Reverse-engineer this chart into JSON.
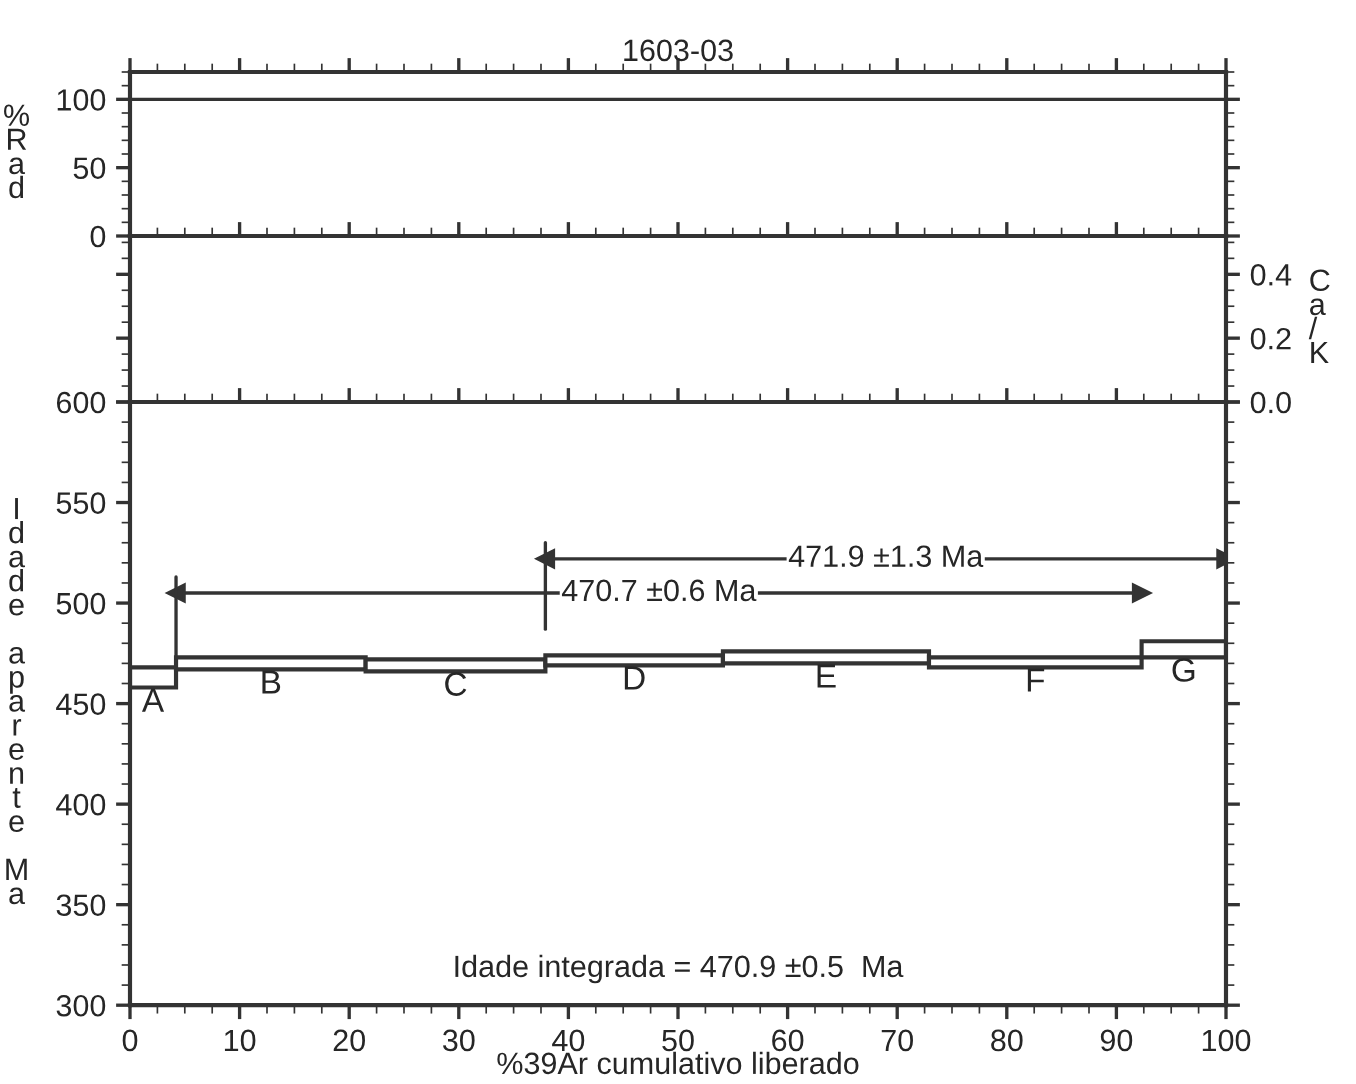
{
  "chart_data": [
    {
      "type": "line",
      "title": "1603-03",
      "ylabel": "%Rad",
      "x": [
        0,
        100
      ],
      "values": [
        100,
        100
      ],
      "color": "#333333",
      "xlim": [
        0,
        100
      ],
      "xticks": [
        0,
        10,
        20,
        30,
        40,
        50,
        60,
        70,
        80,
        90,
        100
      ],
      "ylim": [
        0,
        120
      ],
      "yticks": [
        0,
        50,
        100
      ],
      "tick_labels": "y",
      "grid": false
    },
    {
      "type": "line",
      "y2label": "Ca/K",
      "xlim": [
        0,
        100
      ],
      "xticks": [
        0,
        10,
        20,
        30,
        40,
        50,
        60,
        70,
        80,
        90,
        100
      ],
      "y2lim": [
        0,
        0.52
      ],
      "y2ticks": [
        {
          "value": 0,
          "label": "0.0"
        },
        {
          "value": 0.2,
          "label": "0.2"
        },
        {
          "value": 0.4,
          "label": "0.4"
        }
      ],
      "tick_labels": false,
      "grid": false
    },
    {
      "type": "histogram",
      "xlabel": "%39Ar cumulativo liberado",
      "ylabel": "Idade aparente Ma",
      "bins": [
        0,
        4.2,
        21.5,
        37.9,
        54.1,
        72.9,
        92.3,
        100
      ],
      "base": [
        458,
        467,
        466,
        469,
        470,
        468,
        473
      ],
      "values": [
        10,
        6,
        6,
        5,
        6,
        5,
        8
      ],
      "color": "#333333",
      "series": [
        {
          "type": "line",
          "name": "470.7 ±0.6 Ma",
          "x": [
            4.2,
            92.3
          ],
          "values": [
            505,
            505
          ],
          "color": "#333333",
          "marker": "triangle"
        },
        {
          "type": "line",
          "name": "471.9 ±1.3 Ma",
          "x": [
            37.9,
            100
          ],
          "values": [
            522,
            522
          ],
          "color": "#333333",
          "marker": "triangle"
        }
      ],
      "annotations": [
        "A",
        "B",
        "C",
        "D",
        "E",
        "F",
        "G",
        "Idade integrada = 470.9 ±0.5  Ma"
      ],
      "xlim": [
        0,
        100
      ],
      "xticks": [
        0,
        10,
        20,
        30,
        40,
        50,
        60,
        70,
        80,
        90,
        100
      ],
      "ylim": [
        300,
        600
      ],
      "yticks": [
        300,
        350,
        400,
        450,
        500,
        550,
        600
      ],
      "grid": false
    }
  ]
}
